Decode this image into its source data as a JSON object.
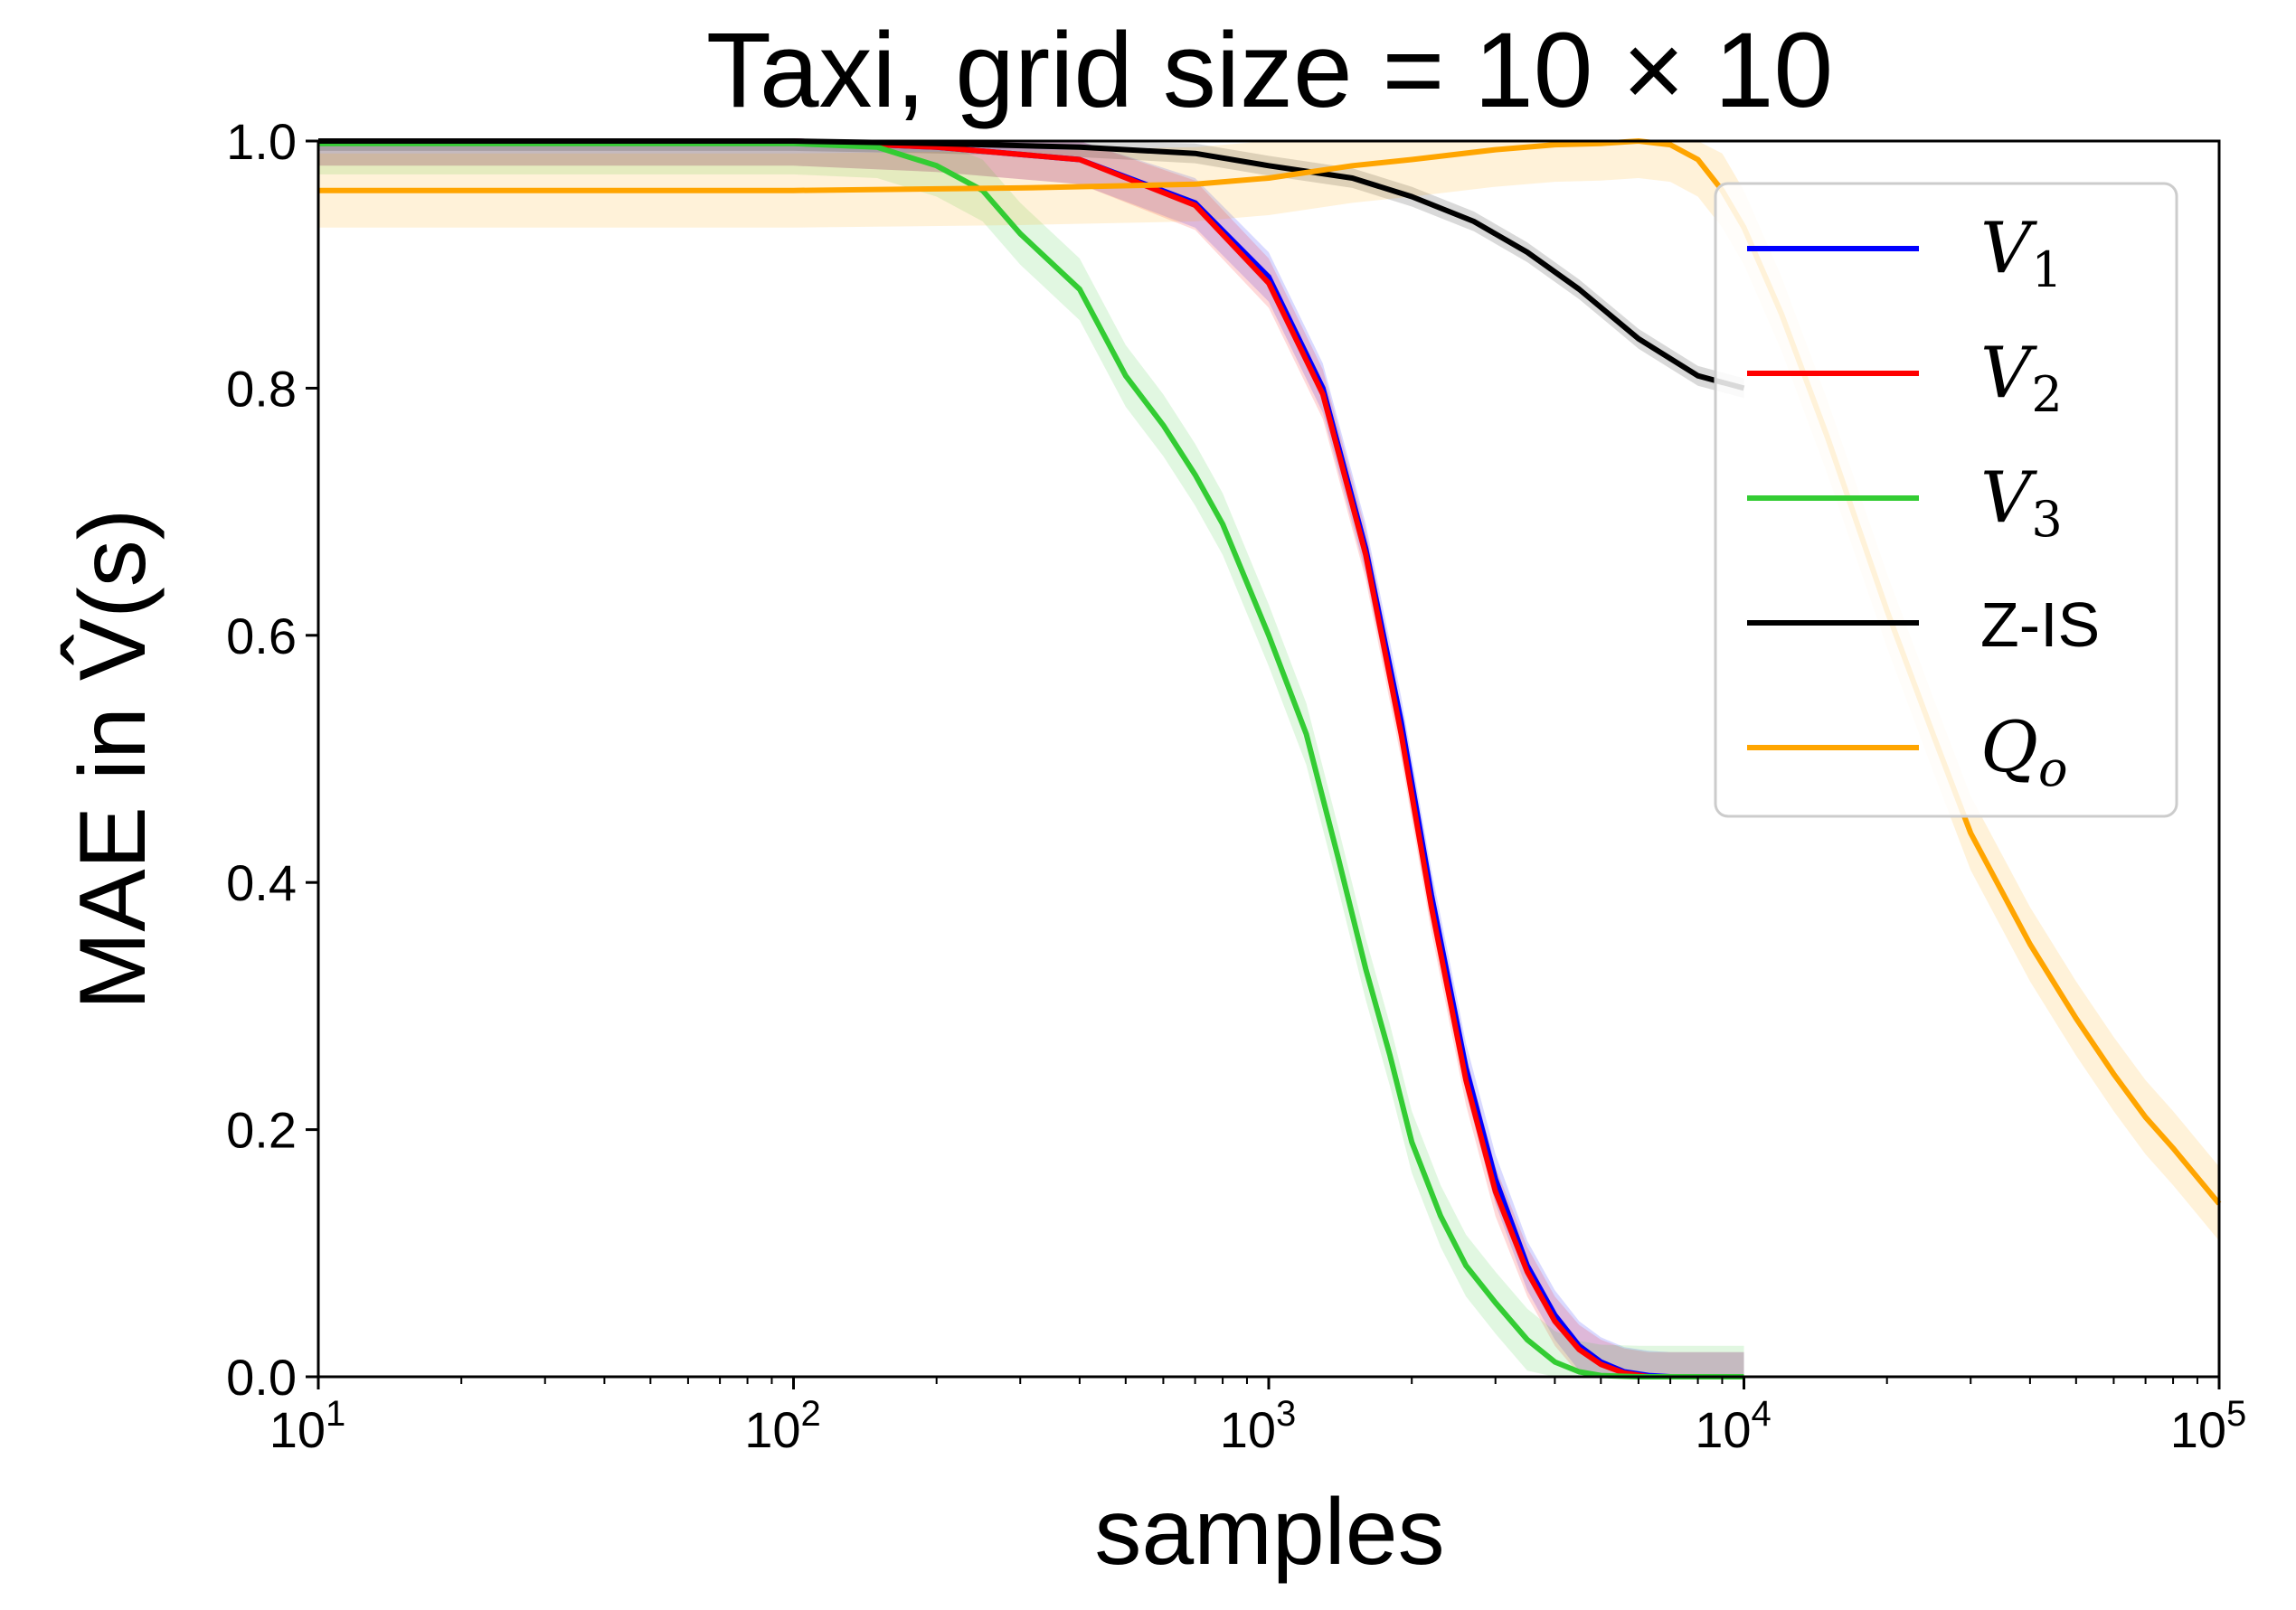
{
  "chart_data": {
    "type": "line",
    "title": "Taxi, grid size = 10 × 10",
    "xlabel": "samples",
    "ylabel": "MAE in V̂(s)",
    "xscale": "log",
    "xlim": [
      10,
      100000
    ],
    "ylim": [
      0.0,
      1.0
    ],
    "x_ticks": [
      {
        "base": "10",
        "exp": "1",
        "value": 10
      },
      {
        "base": "10",
        "exp": "2",
        "value": 100
      },
      {
        "base": "10",
        "exp": "3",
        "value": 1000
      },
      {
        "base": "10",
        "exp": "4",
        "value": 10000
      },
      {
        "base": "10",
        "exp": "5",
        "value": 100000
      }
    ],
    "y_ticks": [
      "0.0",
      "0.2",
      "0.4",
      "0.6",
      "0.8",
      "1.0"
    ],
    "grid": false,
    "legend_position": "upper-right",
    "series": [
      {
        "name": "V",
        "subscript": "1",
        "color": "#0000ff",
        "x": [
          10,
          100,
          200,
          400,
          700,
          1000,
          1300,
          1600,
          1900,
          2200,
          2600,
          3000,
          3500,
          4000,
          4500,
          5000,
          5600,
          6300,
          7000,
          8000,
          10000
        ],
        "y": [
          1.0,
          1.0,
          0.995,
          0.985,
          0.95,
          0.89,
          0.8,
          0.67,
          0.53,
          0.39,
          0.25,
          0.16,
          0.09,
          0.05,
          0.025,
          0.012,
          0.004,
          0.001,
          0.0,
          0.0,
          0.0
        ],
        "band": 0.02
      },
      {
        "name": "V",
        "subscript": "2",
        "color": "#ff0000",
        "x": [
          10,
          100,
          200,
          400,
          700,
          1000,
          1300,
          1600,
          1900,
          2200,
          2600,
          3000,
          3500,
          4000,
          4500,
          5000,
          5600,
          6300,
          7000,
          8000,
          10000
        ],
        "y": [
          1.0,
          1.0,
          0.995,
          0.985,
          0.948,
          0.885,
          0.795,
          0.665,
          0.52,
          0.38,
          0.24,
          0.15,
          0.085,
          0.045,
          0.022,
          0.01,
          0.003,
          0.0,
          0.0,
          0.0,
          0.0
        ],
        "band": 0.02
      },
      {
        "name": "V",
        "subscript": "3",
        "color": "#33cc33",
        "x": [
          10,
          100,
          150,
          200,
          250,
          300,
          400,
          500,
          600,
          700,
          800,
          1000,
          1200,
          1400,
          1600,
          1800,
          2000,
          2300,
          2600,
          3000,
          3500,
          4000,
          4500,
          5000,
          6000,
          8000,
          10000
        ],
        "y": [
          0.998,
          0.998,
          0.995,
          0.98,
          0.96,
          0.925,
          0.88,
          0.81,
          0.77,
          0.73,
          0.69,
          0.6,
          0.52,
          0.42,
          0.33,
          0.26,
          0.19,
          0.13,
          0.09,
          0.06,
          0.03,
          0.012,
          0.004,
          0.001,
          0.0,
          0.0,
          0.0
        ],
        "band": 0.025
      },
      {
        "name": "Z-IS",
        "subscript": "",
        "color": "#000000",
        "x": [
          10,
          100,
          200,
          400,
          700,
          1000,
          1500,
          2000,
          2700,
          3500,
          4500,
          6000,
          8000,
          10000
        ],
        "y": [
          1.0,
          1.0,
          0.998,
          0.995,
          0.99,
          0.98,
          0.97,
          0.955,
          0.935,
          0.91,
          0.88,
          0.84,
          0.81,
          0.8
        ],
        "band": 0.008
      },
      {
        "name": "Q",
        "subscript": "o",
        "color": "#ffa500",
        "x": [
          10,
          100,
          300,
          700,
          1000,
          1500,
          2000,
          3000,
          4000,
          5000,
          6000,
          7000,
          8000,
          9000,
          10000,
          12000,
          15000,
          20000,
          25000,
          30000,
          40000,
          50000,
          60000,
          70000,
          80000,
          100000
        ],
        "y": [
          0.96,
          0.96,
          0.962,
          0.965,
          0.97,
          0.98,
          0.985,
          0.993,
          0.997,
          0.998,
          1.0,
          0.997,
          0.985,
          0.96,
          0.93,
          0.86,
          0.76,
          0.62,
          0.52,
          0.44,
          0.35,
          0.29,
          0.245,
          0.21,
          0.185,
          0.14
        ],
        "band": 0.03
      }
    ]
  }
}
